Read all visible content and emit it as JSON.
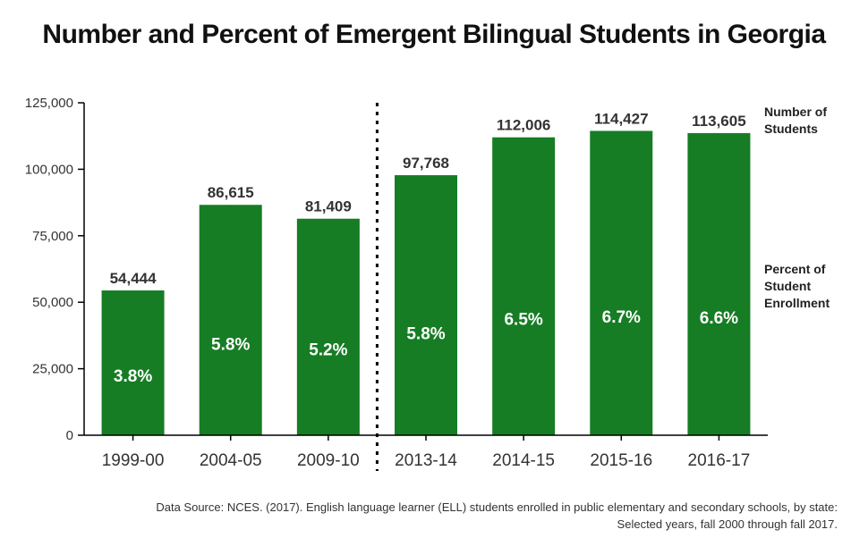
{
  "title": "Number and Percent of Emergent Bilingual Students in Georgia",
  "side_labels": {
    "number": "Number of\nStudents",
    "percent": "Percent  of\nStudent\nEnrollment"
  },
  "source": {
    "line1": "Data Source: NCES. (2017). English language learner (ELL) students enrolled in public elementary and secondary schools, by state:",
    "line2": "Selected years, fall 2000 through fall 2017."
  },
  "colors": {
    "bar": "#167d24",
    "bar_text": "#ffffff",
    "axis": "#000000",
    "label": "#333333"
  },
  "chart_data": {
    "type": "bar",
    "categories": [
      "1999-00",
      "2004-05",
      "2009-10",
      "2013-14",
      "2014-15",
      "2015-16",
      "2016-17"
    ],
    "values": [
      54444,
      86615,
      81409,
      97768,
      112006,
      114427,
      113605
    ],
    "value_labels": [
      "54,444",
      "86,615",
      "81,409",
      "97,768",
      "112,006",
      "114,427",
      "113,605"
    ],
    "percent_labels": [
      "3.8%",
      "5.8%",
      "5.2%",
      "5.8%",
      "6.5%",
      "6.7%",
      "6.6%"
    ],
    "percent_values": [
      3.8,
      5.8,
      5.2,
      5.8,
      6.5,
      6.7,
      6.6
    ],
    "yticks": [
      "0",
      "25,000",
      "50,000",
      "75,000",
      "100,000",
      "125,000"
    ],
    "ytick_values": [
      0,
      25000,
      50000,
      75000,
      100000,
      125000
    ],
    "ylim": [
      0,
      125000
    ],
    "divider_between": [
      "2009-10",
      "2013-14"
    ],
    "grid": false,
    "legend": "none"
  }
}
